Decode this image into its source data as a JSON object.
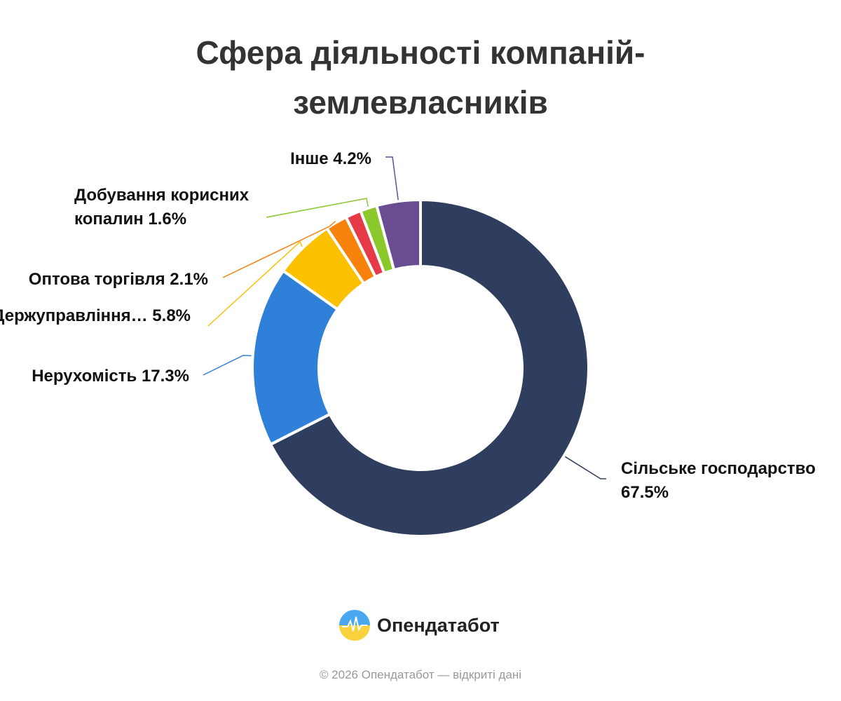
{
  "chart_data": {
    "type": "donut",
    "title": "Сфера діяльності компаній-землевласників",
    "categories": [
      "Сільське господарство",
      "Нерухомість",
      "Держуправління…",
      "Оптова торгівля",
      null,
      "Добування корисних копалин",
      "Інше"
    ],
    "values": [
      67.5,
      17.3,
      5.8,
      2.1,
      1.5,
      1.6,
      4.2
    ],
    "value_labels": [
      "67.5%",
      "17.3%",
      "5.8%",
      "2.1%",
      null,
      "1.6%",
      "4.2%"
    ],
    "colors": [
      "#2f3e5e",
      "#2e80d9",
      "#fbc000",
      "#f7820c",
      "#e63b46",
      "#8bc82c",
      "#6a4c93"
    ]
  },
  "logo_text": "Опендатабот",
  "footer": "© 2026 Опендатабот — відкриті дані"
}
